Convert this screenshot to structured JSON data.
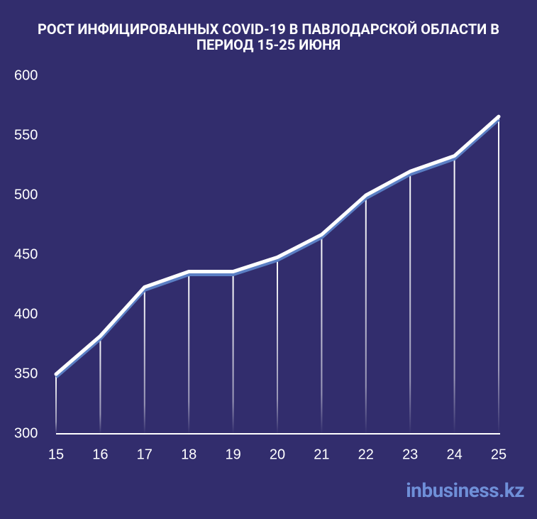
{
  "chart_data": {
    "type": "line",
    "title": "РОСТ ИНФИЦИРОВАННЫХ COVID-19 В ПАВЛОДАРСКОЙ ОБЛАСТИ В ПЕРИОД 15-25 ИЮНЯ",
    "x": [
      15,
      16,
      17,
      18,
      19,
      20,
      21,
      22,
      23,
      24,
      25
    ],
    "series": [
      {
        "name": null,
        "color": "#ffffff",
        "values": [
          350,
          382,
          423,
          436,
          436,
          448,
          467,
          500,
          520,
          533,
          566
        ]
      }
    ],
    "xlim": [
      15,
      25
    ],
    "xticks": [
      15,
      16,
      17,
      18,
      19,
      20,
      21,
      22,
      23,
      24,
      25
    ],
    "ylim": [
      300,
      600
    ],
    "yticks": [
      300,
      350,
      400,
      450,
      500,
      550,
      600
    ],
    "grid": false,
    "watermark": "inbusiness.kz"
  }
}
